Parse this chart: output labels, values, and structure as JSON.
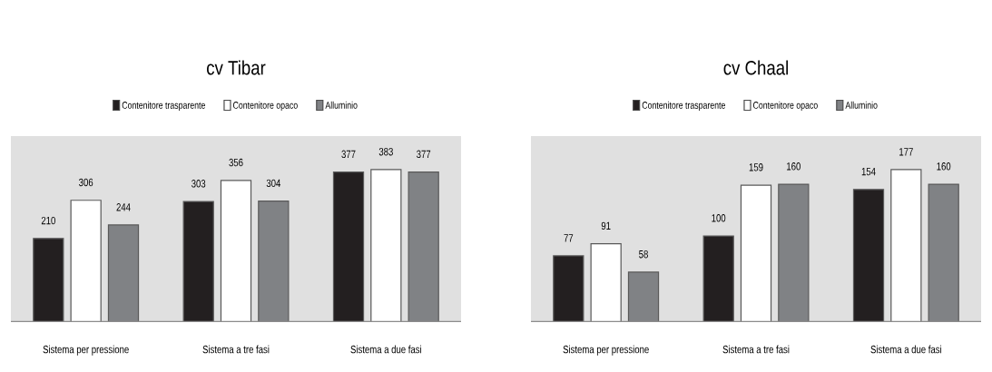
{
  "chart_data": [
    {
      "type": "bar",
      "title": "cv Tibar",
      "categories": [
        "Sistema per pressione",
        "Sistema a tre fasi",
        "Sistema a due fasi"
      ],
      "legend": "top",
      "data_labels": true,
      "series": [
        {
          "name": "Contenitore trasparente",
          "color": "#231f20",
          "values": [
            210,
            303,
            377
          ]
        },
        {
          "name": "Contenitore opaco",
          "color": "#ffffff",
          "values": [
            306,
            356,
            383
          ]
        },
        {
          "name": "Alluminio",
          "color": "#808285",
          "values": [
            244,
            304,
            377
          ]
        }
      ]
    },
    {
      "type": "bar",
      "title": "cv Chaal",
      "categories": [
        "Sistema per pressione",
        "Sistema a tre fasi",
        "Sistema a due fasi"
      ],
      "legend": "top",
      "data_labels": true,
      "series": [
        {
          "name": "Contenitore trasparente",
          "color": "#231f20",
          "values": [
            77,
            100,
            154
          ]
        },
        {
          "name": "Contenitore opaco",
          "color": "#ffffff",
          "values": [
            91,
            159,
            177
          ]
        },
        {
          "name": "Alluminio",
          "color": "#808285",
          "values": [
            58,
            160,
            160
          ]
        }
      ]
    }
  ]
}
